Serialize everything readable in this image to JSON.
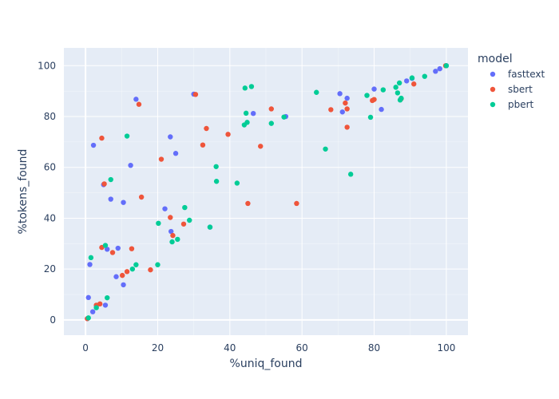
{
  "chart_data": {
    "type": "scatter",
    "xlabel": "%uniq_found",
    "ylabel": "%tokens_found",
    "xlim": [
      -6,
      106
    ],
    "ylim": [
      -6,
      107
    ],
    "xticks": [
      0,
      20,
      40,
      60,
      80,
      100
    ],
    "yticks": [
      0,
      20,
      40,
      60,
      80,
      100
    ],
    "grid": true,
    "legend": {
      "title": "model",
      "placement": "top-right"
    },
    "series": [
      {
        "name": "fasttext",
        "color": "#636efa",
        "points": [
          [
            0.5,
            0.5
          ],
          [
            0.8,
            8.8
          ],
          [
            1.2,
            21.8
          ],
          [
            2,
            3.2
          ],
          [
            2.2,
            68.7
          ],
          [
            3,
            5.5
          ],
          [
            5,
            53.2
          ],
          [
            5.5,
            5.8
          ],
          [
            6,
            27.8
          ],
          [
            7,
            47.5
          ],
          [
            8.5,
            17
          ],
          [
            9,
            28.2
          ],
          [
            10.5,
            13.8
          ],
          [
            10.5,
            46.2
          ],
          [
            12.5,
            60.8
          ],
          [
            14,
            86.8
          ],
          [
            22,
            43.7
          ],
          [
            23.5,
            72
          ],
          [
            23.7,
            34.8
          ],
          [
            25,
            65.5
          ],
          [
            30,
            88.8
          ],
          [
            34.5,
            36.5
          ],
          [
            46.5,
            81.2
          ],
          [
            55.5,
            80
          ],
          [
            70.5,
            89
          ],
          [
            71.2,
            81.8
          ],
          [
            72.5,
            87.2
          ],
          [
            80,
            90.8
          ],
          [
            82,
            82.8
          ],
          [
            89,
            94
          ],
          [
            90.5,
            95
          ],
          [
            97,
            97.8
          ],
          [
            98.2,
            98.8
          ],
          [
            100,
            100
          ]
        ]
      },
      {
        "name": "sbert",
        "color": "#ef553b",
        "points": [
          [
            0.5,
            0.5
          ],
          [
            3,
            5.8
          ],
          [
            4,
            6.3
          ],
          [
            4.5,
            71.5
          ],
          [
            4.5,
            28.5
          ],
          [
            5.2,
            53.5
          ],
          [
            7.5,
            26.5
          ],
          [
            10.2,
            17.5
          ],
          [
            11.5,
            19
          ],
          [
            12.8,
            28
          ],
          [
            14.8,
            84.8
          ],
          [
            15.5,
            48.3
          ],
          [
            18,
            19.7
          ],
          [
            21,
            63.2
          ],
          [
            23.5,
            40.3
          ],
          [
            24.2,
            33.2
          ],
          [
            27.2,
            37.7
          ],
          [
            30.5,
            88.7
          ],
          [
            32.5,
            68.8
          ],
          [
            33.5,
            75.3
          ],
          [
            39.5,
            73
          ],
          [
            45,
            45.8
          ],
          [
            48.5,
            68.3
          ],
          [
            51.5,
            83
          ],
          [
            58.5,
            45.8
          ],
          [
            68,
            82.7
          ],
          [
            72,
            85.3
          ],
          [
            72.5,
            83
          ],
          [
            72.5,
            75.8
          ],
          [
            79.5,
            86.3
          ],
          [
            80,
            86.7
          ],
          [
            87.5,
            87
          ],
          [
            91,
            92.8
          ],
          [
            99.8,
            100
          ]
        ]
      },
      {
        "name": "pbert",
        "color": "#00cc96",
        "points": [
          [
            0.8,
            0.8
          ],
          [
            1.5,
            24.5
          ],
          [
            3,
            4.8
          ],
          [
            5.5,
            29.3
          ],
          [
            6,
            8.7
          ],
          [
            7,
            55.2
          ],
          [
            11.5,
            72.3
          ],
          [
            13,
            20
          ],
          [
            14,
            21.7
          ],
          [
            20,
            21.7
          ],
          [
            20.2,
            38
          ],
          [
            24,
            30.7
          ],
          [
            25.5,
            31.7
          ],
          [
            27.5,
            44.2
          ],
          [
            28.8,
            39.2
          ],
          [
            34.5,
            36.5
          ],
          [
            36.2,
            60.3
          ],
          [
            36.3,
            54.5
          ],
          [
            42,
            53.8
          ],
          [
            44,
            76.7
          ],
          [
            44.2,
            91.2
          ],
          [
            44.5,
            81.3
          ],
          [
            44.8,
            77.7
          ],
          [
            46,
            91.8
          ],
          [
            51.5,
            77.3
          ],
          [
            55,
            79.8
          ],
          [
            64,
            89.5
          ],
          [
            66.5,
            67.2
          ],
          [
            73.5,
            57.3
          ],
          [
            78,
            88.3
          ],
          [
            79,
            79.7
          ],
          [
            82.5,
            90.5
          ],
          [
            86,
            91.5
          ],
          [
            86.5,
            89.3
          ],
          [
            87,
            93.2
          ],
          [
            87.2,
            86.5
          ],
          [
            87.5,
            87.2
          ],
          [
            90.5,
            95.2
          ],
          [
            94,
            95.8
          ],
          [
            100,
            100
          ]
        ]
      }
    ]
  }
}
